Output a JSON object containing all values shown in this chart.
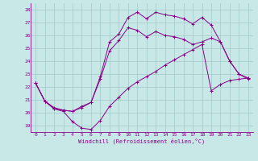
{
  "xlabel": "Windchill (Refroidissement éolien,°C)",
  "xlim": [
    -0.5,
    23.5
  ],
  "ylim": [
    18.5,
    28.5
  ],
  "xticks": [
    0,
    1,
    2,
    3,
    4,
    5,
    6,
    7,
    8,
    9,
    10,
    11,
    12,
    13,
    14,
    15,
    16,
    17,
    18,
    19,
    20,
    21,
    22,
    23
  ],
  "yticks": [
    19,
    20,
    21,
    22,
    23,
    24,
    25,
    26,
    27,
    28
  ],
  "bg_color": "#c8e8e8",
  "line_color": "#880088",
  "grid_color": "#a0c8c8",
  "line1_x": [
    0,
    1,
    2,
    3,
    4,
    5,
    6,
    7,
    8,
    9,
    10,
    11,
    12,
    13,
    14,
    15,
    16,
    17,
    18,
    19,
    20,
    21,
    22,
    23
  ],
  "line1_y": [
    22.3,
    20.9,
    20.3,
    20.1,
    19.3,
    18.8,
    18.7,
    19.4,
    20.5,
    21.2,
    21.9,
    22.4,
    22.8,
    23.2,
    23.7,
    24.1,
    24.5,
    24.9,
    25.3,
    21.7,
    22.2,
    22.5,
    22.6,
    22.7
  ],
  "line2_x": [
    0,
    1,
    2,
    3,
    4,
    5,
    6,
    7,
    8,
    9,
    10,
    11,
    12,
    13,
    14,
    15,
    16,
    17,
    18,
    19,
    20,
    21,
    22,
    23
  ],
  "line2_y": [
    22.3,
    20.9,
    20.3,
    20.2,
    20.1,
    20.5,
    20.8,
    22.6,
    24.8,
    25.6,
    26.6,
    26.4,
    25.9,
    26.3,
    26.0,
    25.9,
    25.7,
    25.3,
    25.5,
    25.8,
    25.5,
    24.0,
    23.0,
    22.7
  ],
  "line3_x": [
    0,
    1,
    2,
    3,
    4,
    5,
    6,
    7,
    8,
    9,
    10,
    11,
    12,
    13,
    14,
    15,
    16,
    17,
    18,
    19,
    20,
    21,
    22,
    23
  ],
  "line3_y": [
    22.3,
    20.9,
    20.4,
    20.2,
    20.1,
    20.4,
    20.8,
    22.8,
    25.5,
    26.1,
    27.4,
    27.8,
    27.3,
    27.8,
    27.6,
    27.5,
    27.3,
    26.9,
    27.4,
    26.8,
    25.5,
    24.0,
    23.0,
    22.6
  ]
}
